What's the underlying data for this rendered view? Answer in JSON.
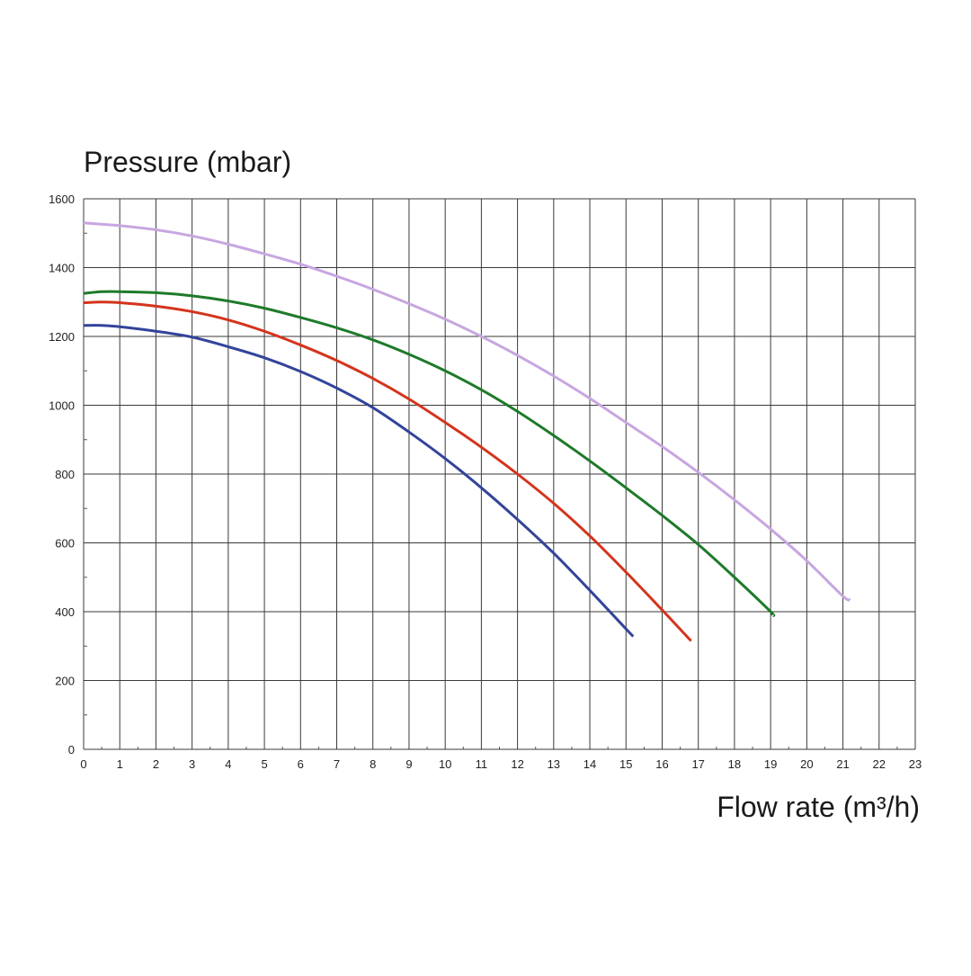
{
  "chart_data": {
    "type": "line",
    "title": "",
    "ylabel": "Pressure (mbar)",
    "xlabel": "Flow rate (m³/h)",
    "xlim": [
      0,
      23
    ],
    "ylim": [
      0,
      1600
    ],
    "x_ticks": [
      "0",
      "1",
      "2",
      "3",
      "4",
      "5",
      "6",
      "7",
      "8",
      "9",
      "10",
      "11",
      "12",
      "13",
      "14",
      "15",
      "16",
      "17",
      "18",
      "19",
      "20",
      "21",
      "22",
      "23"
    ],
    "y_ticks": [
      "0",
      "200",
      "400",
      "600",
      "800",
      "1000",
      "1200",
      "1400",
      "1600"
    ],
    "grid": true,
    "legend": "none",
    "series": [
      {
        "color": "#c8a6e0",
        "points": [
          [
            0,
            1530
          ],
          [
            1,
            1522
          ],
          [
            2,
            1510
          ],
          [
            3,
            1492
          ],
          [
            4,
            1468
          ],
          [
            5,
            1440
          ],
          [
            6,
            1410
          ],
          [
            7,
            1375
          ],
          [
            8,
            1337
          ],
          [
            9,
            1295
          ],
          [
            10,
            1250
          ],
          [
            11,
            1200
          ],
          [
            12,
            1145
          ],
          [
            13,
            1085
          ],
          [
            14,
            1020
          ],
          [
            15,
            950
          ],
          [
            16,
            880
          ],
          [
            17,
            805
          ],
          [
            18,
            725
          ],
          [
            19,
            640
          ],
          [
            20,
            548
          ],
          [
            21,
            445
          ],
          [
            21.2,
            435
          ]
        ]
      },
      {
        "color": "#1e7a2a",
        "points": [
          [
            0,
            1325
          ],
          [
            0.5,
            1330
          ],
          [
            1,
            1330
          ],
          [
            2,
            1327
          ],
          [
            3,
            1318
          ],
          [
            4,
            1303
          ],
          [
            5,
            1282
          ],
          [
            6,
            1255
          ],
          [
            7,
            1225
          ],
          [
            8,
            1190
          ],
          [
            9,
            1148
          ],
          [
            10,
            1100
          ],
          [
            11,
            1045
          ],
          [
            12,
            982
          ],
          [
            13,
            912
          ],
          [
            14,
            838
          ],
          [
            15,
            760
          ],
          [
            16,
            680
          ],
          [
            17,
            595
          ],
          [
            18,
            500
          ],
          [
            19,
            400
          ],
          [
            19.05,
            390
          ]
        ]
      },
      {
        "color": "#d4341c",
        "points": [
          [
            0,
            1298
          ],
          [
            0.5,
            1300
          ],
          [
            1,
            1298
          ],
          [
            2,
            1288
          ],
          [
            3,
            1272
          ],
          [
            4,
            1248
          ],
          [
            5,
            1215
          ],
          [
            6,
            1175
          ],
          [
            7,
            1130
          ],
          [
            8,
            1078
          ],
          [
            9,
            1018
          ],
          [
            10,
            950
          ],
          [
            11,
            878
          ],
          [
            12,
            800
          ],
          [
            13,
            715
          ],
          [
            14,
            620
          ],
          [
            15,
            515
          ],
          [
            16,
            405
          ],
          [
            16.8,
            315
          ]
        ]
      },
      {
        "color": "#33449a",
        "points": [
          [
            0,
            1232
          ],
          [
            0.5,
            1232
          ],
          [
            1,
            1228
          ],
          [
            2,
            1215
          ],
          [
            3,
            1198
          ],
          [
            4,
            1170
          ],
          [
            5,
            1138
          ],
          [
            6,
            1098
          ],
          [
            7,
            1050
          ],
          [
            8,
            993
          ],
          [
            9,
            922
          ],
          [
            10,
            845
          ],
          [
            11,
            760
          ],
          [
            12,
            668
          ],
          [
            13,
            570
          ],
          [
            14,
            462
          ],
          [
            15,
            350
          ],
          [
            15.2,
            328
          ]
        ]
      }
    ]
  }
}
